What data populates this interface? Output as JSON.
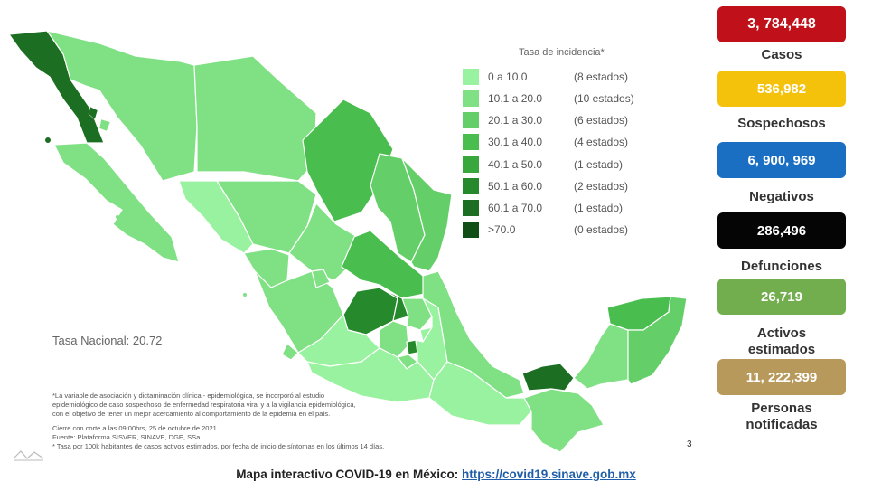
{
  "legend": {
    "title": "Tasa de incidencia*",
    "items": [
      {
        "range": "0   a  10.0",
        "count": "(8 estados)",
        "color": "#99f29f"
      },
      {
        "range": "10.1 a  20.0",
        "count": "(10 estados)",
        "color": "#80e084"
      },
      {
        "range": "20.1 a  30.0",
        "count": "(6 estados)",
        "color": "#64cf68"
      },
      {
        "range": "30.1 a  40.0",
        "count": "(4 estados)",
        "color": "#49bd4e"
      },
      {
        "range": "40.1 a  50.0",
        "count": "(1 estado)",
        "color": "#38a83c"
      },
      {
        "range": "50.1 a  60.0",
        "count": "(2 estados)",
        "color": "#26892b"
      },
      {
        "range": "60.1 a  70.0",
        "count": "(1 estado)",
        "color": "#1c6e22"
      },
      {
        "range": ">70.0",
        "count": "(0 estados)",
        "color": "#0f4f15"
      }
    ]
  },
  "tasa_nacional": "Tasa Nacional: 20.72",
  "notes": {
    "line1": "*La variable de asociación y dictaminación clínica - epidemiológica, se incorporó al estudio",
    "line2": "epidemiológico de caso sospechoso de enfermedad respiratoria viral y a la vigilancia epidemiológica,",
    "line3": "con el objetivo de tener un mejor acercamiento al comportamiento de la epidemia en el país.",
    "line4": "Cierre con corte a las 09:00hrs, 25 de octubre de 2021",
    "line5": "Fuente: Plataforma SISVER, SINAVE, DGE, SSa.",
    "line6": "* Tasa por 100k habitantes de casos activos estimados, por fecha de inicio de síntomas en los últimos 14 días."
  },
  "page_number": "3",
  "footer": {
    "text": "Mapa interactivo COVID-19 en México: ",
    "link": "https://covid19.sinave.gob.mx"
  },
  "stats": {
    "casos": {
      "value": "3, 784,448",
      "label": "Casos",
      "color": "#c0101a"
    },
    "sospechosos": {
      "value": "536,982",
      "label": "Sospechosos",
      "color": "#f4c10b"
    },
    "negativos": {
      "value": "6, 900, 969",
      "label": "Negativos",
      "color": "#1b6fc2"
    },
    "defunciones": {
      "value": "286,496",
      "label": "Defunciones",
      "color": "#050505"
    },
    "activos": {
      "value": "26,719",
      "label_line1": "Activos",
      "label_line2": "estimados",
      "color": "#72ad4e"
    },
    "notificadas": {
      "value": "11, 222,399",
      "label_line1": "Personas",
      "label_line2": "notificadas",
      "color": "#b8995c"
    }
  }
}
